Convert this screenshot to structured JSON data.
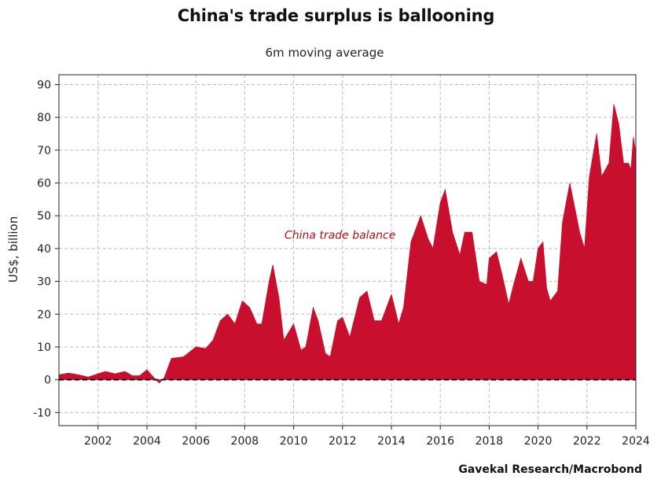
{
  "chart_data": {
    "type": "area",
    "title": "China's trade surplus is ballooning",
    "subtitle": "6m moving average",
    "ylabel": "US$, billion",
    "xlabel": "",
    "source": "Gavekal Research/Macrobond",
    "annotation": "China trade balance",
    "ylim": [
      -14,
      93
    ],
    "xlim": [
      2000.4,
      2024.0
    ],
    "yticks": [
      -10,
      0,
      10,
      20,
      30,
      40,
      50,
      60,
      70,
      80,
      90
    ],
    "xticks": [
      2002,
      2004,
      2006,
      2008,
      2010,
      2012,
      2014,
      2016,
      2018,
      2020,
      2022,
      2024
    ],
    "grid": true,
    "zero_line": "dashed",
    "color": "#c8102e",
    "series": [
      {
        "name": "China trade balance",
        "points": [
          [
            2000.4,
            1.5
          ],
          [
            2000.8,
            2.0
          ],
          [
            2001.2,
            1.5
          ],
          [
            2001.6,
            0.8
          ],
          [
            2002.0,
            1.8
          ],
          [
            2002.3,
            2.5
          ],
          [
            2002.7,
            1.8
          ],
          [
            2003.1,
            2.5
          ],
          [
            2003.4,
            1.2
          ],
          [
            2003.7,
            1.2
          ],
          [
            2004.0,
            3.0
          ],
          [
            2004.3,
            0.5
          ],
          [
            2004.5,
            -1.0
          ],
          [
            2004.7,
            0.5
          ],
          [
            2005.0,
            6.5
          ],
          [
            2005.5,
            7.0
          ],
          [
            2006.0,
            10.0
          ],
          [
            2006.4,
            9.5
          ],
          [
            2006.7,
            12.0
          ],
          [
            2007.0,
            18.0
          ],
          [
            2007.3,
            20.0
          ],
          [
            2007.6,
            17.0
          ],
          [
            2007.9,
            24.0
          ],
          [
            2008.2,
            22.0
          ],
          [
            2008.5,
            17.0
          ],
          [
            2008.7,
            17.0
          ],
          [
            2009.0,
            30.0
          ],
          [
            2009.15,
            35.0
          ],
          [
            2009.4,
            25.0
          ],
          [
            2009.6,
            12.0
          ],
          [
            2010.0,
            17.0
          ],
          [
            2010.3,
            9.0
          ],
          [
            2010.5,
            10.0
          ],
          [
            2010.8,
            22.0
          ],
          [
            2011.0,
            18.0
          ],
          [
            2011.3,
            8.0
          ],
          [
            2011.5,
            7.0
          ],
          [
            2011.8,
            18.0
          ],
          [
            2012.0,
            19.0
          ],
          [
            2012.3,
            13.0
          ],
          [
            2012.7,
            25.0
          ],
          [
            2013.0,
            27.0
          ],
          [
            2013.3,
            18.0
          ],
          [
            2013.6,
            18.0
          ],
          [
            2014.0,
            26.0
          ],
          [
            2014.3,
            17.0
          ],
          [
            2014.5,
            22.0
          ],
          [
            2014.8,
            42.0
          ],
          [
            2015.2,
            50.0
          ],
          [
            2015.5,
            43.0
          ],
          [
            2015.7,
            40.0
          ],
          [
            2016.0,
            54.0
          ],
          [
            2016.2,
            58.0
          ],
          [
            2016.5,
            45.0
          ],
          [
            2016.8,
            38.0
          ],
          [
            2017.0,
            45.0
          ],
          [
            2017.3,
            45.0
          ],
          [
            2017.6,
            30.0
          ],
          [
            2017.9,
            29.0
          ],
          [
            2018.0,
            37.0
          ],
          [
            2018.3,
            39.0
          ],
          [
            2018.5,
            33.0
          ],
          [
            2018.8,
            23.0
          ],
          [
            2019.0,
            29.0
          ],
          [
            2019.3,
            37.0
          ],
          [
            2019.6,
            30.0
          ],
          [
            2019.8,
            30.0
          ],
          [
            2020.0,
            40.0
          ],
          [
            2020.2,
            42.0
          ],
          [
            2020.35,
            28.0
          ],
          [
            2020.5,
            24.0
          ],
          [
            2020.8,
            27.0
          ],
          [
            2021.0,
            48.0
          ],
          [
            2021.3,
            60.0
          ],
          [
            2021.7,
            45.0
          ],
          [
            2021.9,
            40.0
          ],
          [
            2022.1,
            62.0
          ],
          [
            2022.4,
            75.0
          ],
          [
            2022.6,
            62.0
          ],
          [
            2022.9,
            66.0
          ],
          [
            2023.1,
            84.0
          ],
          [
            2023.3,
            78.0
          ],
          [
            2023.5,
            66.0
          ],
          [
            2023.7,
            66.0
          ],
          [
            2023.8,
            64.0
          ],
          [
            2023.9,
            74.0
          ],
          [
            2024.0,
            69.0
          ]
        ]
      }
    ]
  }
}
